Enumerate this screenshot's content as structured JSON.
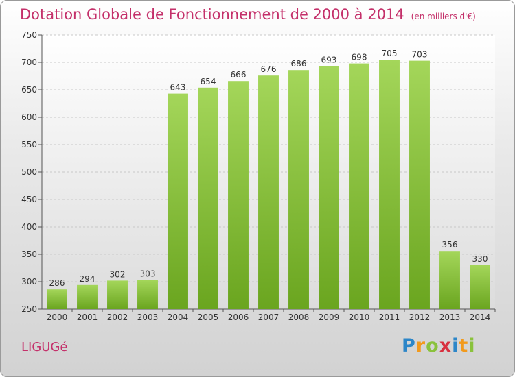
{
  "chart_data": {
    "type": "bar",
    "title": "Dotation Globale de Fonctionnement de 2000 à 2014",
    "subtitle": "(en milliers d'€)",
    "categories": [
      "2000",
      "2001",
      "2002",
      "2003",
      "2004",
      "2005",
      "2006",
      "2007",
      "2008",
      "2009",
      "2010",
      "2011",
      "2012",
      "2013",
      "2014"
    ],
    "values": [
      286,
      294,
      302,
      303,
      643,
      654,
      666,
      676,
      686,
      693,
      698,
      705,
      703,
      356,
      330
    ],
    "yticks": [
      250,
      300,
      350,
      400,
      450,
      500,
      550,
      600,
      650,
      700,
      750
    ],
    "ylim": [
      250,
      750
    ],
    "xlabel": "",
    "ylabel": "",
    "grid": true,
    "legend": "none",
    "bar_color": "#8cc63f"
  },
  "footer": {
    "commune": "LIGUGé",
    "logo_letters": [
      "P",
      "r",
      "o",
      "x",
      "i",
      "t",
      "i"
    ]
  }
}
